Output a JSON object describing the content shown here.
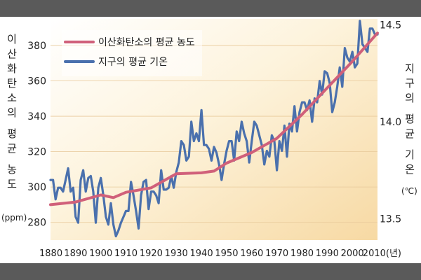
{
  "chart_data": {
    "type": "line",
    "xlabel": "",
    "x_tick_labels": [
      "1880",
      "1890",
      "1900",
      "1910",
      "1920",
      "1930",
      "1940",
      "1950",
      "1960",
      "1970",
      "1980",
      "1990",
      "2000",
      "2010(년)"
    ],
    "xlim": [
      1880,
      2010
    ],
    "y_left": {
      "label": "이산화탄소의 평균 농도",
      "unit": "(ppm)",
      "ylim": [
        270,
        395
      ],
      "ticks": [
        280,
        300,
        320,
        340,
        360,
        380
      ]
    },
    "y_right": {
      "label": "지구의 평균 기온",
      "unit": "(℃)",
      "ylim": [
        13.39,
        14.53
      ],
      "ticks": [
        "13.5",
        "14.0",
        "14.5"
      ],
      "tick_values": [
        13.5,
        14.0,
        14.5
      ]
    },
    "legend": {
      "placement": "top-left"
    },
    "series": [
      {
        "name": "이산화탄소의 평균 농도",
        "axis": "left",
        "color": "#d0607a",
        "x": [
          1880,
          1890,
          1900,
          1905,
          1910,
          1920,
          1930,
          1940,
          1945,
          1950,
          1960,
          1970,
          1980,
          1990,
          2000,
          2010
        ],
        "y": [
          290,
          291.5,
          295.5,
          294,
          297,
          299.5,
          307.5,
          308,
          309,
          313.5,
          319.5,
          327.5,
          341,
          356,
          371,
          387
        ]
      },
      {
        "name": "지구의 평균 기온",
        "axis": "right",
        "color": "#4a70ad",
        "x": [
          1880,
          1881,
          1882,
          1883,
          1884,
          1885,
          1886,
          1887,
          1888,
          1889,
          1890,
          1891,
          1892,
          1893,
          1894,
          1895,
          1896,
          1897,
          1898,
          1899,
          1900,
          1901,
          1902,
          1903,
          1904,
          1905,
          1906,
          1907,
          1908,
          1909,
          1910,
          1911,
          1912,
          1913,
          1914,
          1915,
          1916,
          1917,
          1918,
          1919,
          1920,
          1921,
          1922,
          1923,
          1924,
          1925,
          1926,
          1927,
          1928,
          1929,
          1930,
          1931,
          1932,
          1933,
          1934,
          1935,
          1936,
          1937,
          1938,
          1939,
          1940,
          1941,
          1942,
          1943,
          1944,
          1945,
          1946,
          1947,
          1948,
          1949,
          1950,
          1951,
          1952,
          1953,
          1954,
          1955,
          1956,
          1957,
          1958,
          1959,
          1960,
          1961,
          1962,
          1963,
          1964,
          1965,
          1966,
          1967,
          1968,
          1969,
          1970,
          1971,
          1972,
          1973,
          1974,
          1975,
          1976,
          1977,
          1978,
          1979,
          1980,
          1981,
          1982,
          1983,
          1984,
          1985,
          1986,
          1987,
          1988,
          1989,
          1990,
          1991,
          1992,
          1993,
          1994,
          1995,
          1996,
          1997,
          1998,
          1999,
          2000,
          2001,
          2002,
          2003,
          2004,
          2005,
          2006,
          2007,
          2008,
          2009,
          2010
        ],
        "y": [
          13.7,
          13.7,
          13.6,
          13.66,
          13.66,
          13.64,
          13.7,
          13.76,
          13.64,
          13.66,
          13.51,
          13.48,
          13.7,
          13.75,
          13.64,
          13.71,
          13.72,
          13.64,
          13.48,
          13.66,
          13.71,
          13.62,
          13.51,
          13.47,
          13.58,
          13.47,
          13.41,
          13.44,
          13.48,
          13.51,
          13.54,
          13.54,
          13.69,
          13.62,
          13.54,
          13.45,
          13.62,
          13.69,
          13.7,
          13.55,
          13.64,
          13.64,
          13.62,
          13.58,
          13.75,
          13.65,
          13.65,
          13.66,
          13.72,
          13.66,
          13.74,
          13.79,
          13.9,
          13.88,
          13.8,
          13.82,
          14.0,
          13.9,
          13.94,
          13.9,
          14.06,
          13.88,
          13.88,
          13.86,
          13.8,
          13.87,
          13.84,
          13.78,
          13.7,
          13.78,
          13.85,
          13.9,
          13.9,
          13.8,
          13.95,
          13.9,
          14.0,
          13.94,
          13.9,
          13.79,
          13.9,
          14.0,
          13.98,
          13.93,
          13.88,
          13.78,
          13.85,
          13.82,
          13.93,
          13.9,
          13.75,
          13.9,
          13.85,
          13.98,
          13.82,
          13.99,
          13.95,
          14.08,
          13.95,
          14.05,
          14.1,
          14.1,
          14.06,
          14.11,
          14.0,
          14.12,
          14.1,
          14.21,
          14.14,
          14.26,
          14.25,
          14.2,
          14.05,
          14.1,
          14.18,
          14.28,
          14.18,
          14.38,
          14.33,
          14.31,
          14.36,
          14.28,
          14.3,
          14.52,
          14.4,
          14.38,
          14.36,
          14.48,
          14.48,
          14.45,
          14.45
        ]
      }
    ]
  }
}
